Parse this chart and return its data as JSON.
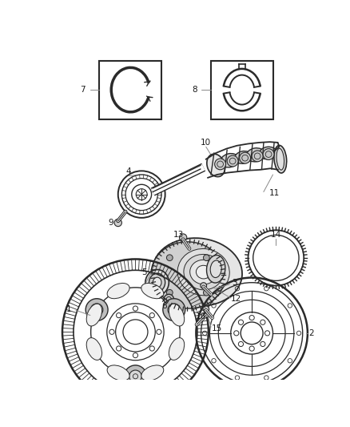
{
  "background_color": "#ffffff",
  "line_color": "#2a2a2a",
  "label_color": "#1a1a1a",
  "leader_color": "#888888",
  "fig_width": 4.38,
  "fig_height": 5.33,
  "dpi": 100
}
